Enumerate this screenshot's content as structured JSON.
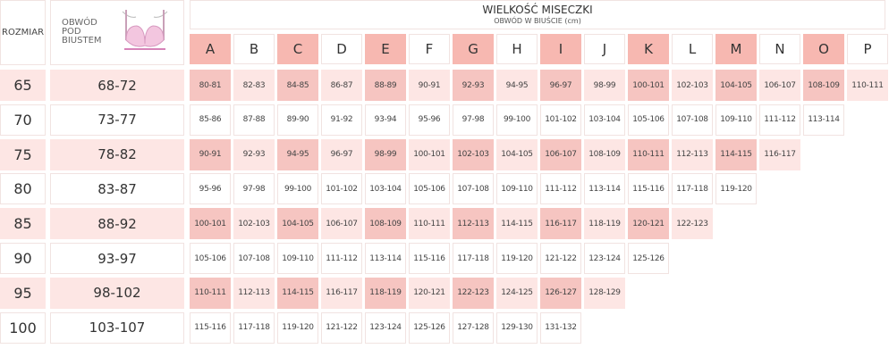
{
  "header": {
    "size_label": "ROZMIAR",
    "underbust_label": "OBWÓD POD BIUSTEM",
    "cup_title": "WIELKOŚĆ MISECZKI",
    "cup_subtitle": "OBWÓD W BIUŚCIE (cm)",
    "bra_icon": "bra-illustration-icon"
  },
  "colors": {
    "header_pink": "#f7b8b1",
    "cell_dark": "#f6c5c1",
    "cell_light": "#fde6e4",
    "border": "#f1e3e1"
  },
  "cups": [
    "A",
    "B",
    "C",
    "D",
    "E",
    "F",
    "G",
    "H",
    "I",
    "J",
    "K",
    "L",
    "M",
    "N",
    "O",
    "P"
  ],
  "rows": [
    {
      "size": "65",
      "underbust": "68-72",
      "values": [
        "80-81",
        "82-83",
        "84-85",
        "86-87",
        "88-89",
        "90-91",
        "92-93",
        "94-95",
        "96-97",
        "98-99",
        "100-101",
        "102-103",
        "104-105",
        "106-107",
        "108-109",
        "110-111"
      ]
    },
    {
      "size": "70",
      "underbust": "73-77",
      "values": [
        "85-86",
        "87-88",
        "89-90",
        "91-92",
        "93-94",
        "95-96",
        "97-98",
        "99-100",
        "101-102",
        "103-104",
        "105-106",
        "107-108",
        "109-110",
        "111-112",
        "113-114"
      ]
    },
    {
      "size": "75",
      "underbust": "78-82",
      "values": [
        "90-91",
        "92-93",
        "94-95",
        "96-97",
        "98-99",
        "100-101",
        "102-103",
        "104-105",
        "106-107",
        "108-109",
        "110-111",
        "112-113",
        "114-115",
        "116-117"
      ]
    },
    {
      "size": "80",
      "underbust": "83-87",
      "values": [
        "95-96",
        "97-98",
        "99-100",
        "101-102",
        "103-104",
        "105-106",
        "107-108",
        "109-110",
        "111-112",
        "113-114",
        "115-116",
        "117-118",
        "119-120"
      ]
    },
    {
      "size": "85",
      "underbust": "88-92",
      "values": [
        "100-101",
        "102-103",
        "104-105",
        "106-107",
        "108-109",
        "110-111",
        "112-113",
        "114-115",
        "116-117",
        "118-119",
        "120-121",
        "122-123"
      ]
    },
    {
      "size": "90",
      "underbust": "93-97",
      "values": [
        "105-106",
        "107-108",
        "109-110",
        "111-112",
        "113-114",
        "115-116",
        "117-118",
        "119-120",
        "121-122",
        "123-124",
        "125-126"
      ]
    },
    {
      "size": "95",
      "underbust": "98-102",
      "values": [
        "110-111",
        "112-113",
        "114-115",
        "116-117",
        "118-119",
        "120-121",
        "122-123",
        "124-125",
        "126-127",
        "128-129"
      ]
    },
    {
      "size": "100",
      "underbust": "103-107",
      "values": [
        "115-116",
        "117-118",
        "119-120",
        "121-122",
        "123-124",
        "125-126",
        "127-128",
        "129-130",
        "131-132"
      ]
    }
  ]
}
